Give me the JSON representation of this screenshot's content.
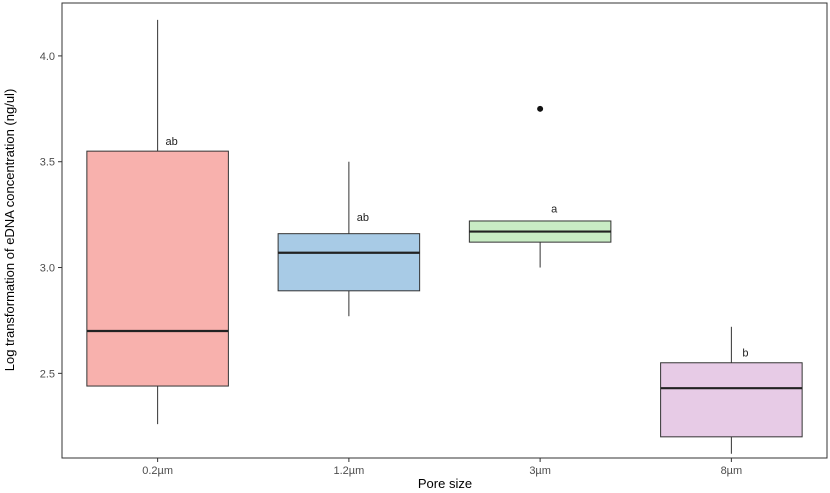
{
  "chart_data": {
    "type": "boxplot",
    "xlabel": "Pore size",
    "ylabel": "Log transformation of eDNA concentration (ng/ul)",
    "ylim": [
      2.1,
      4.25
    ],
    "yticks": [
      "2.5",
      "3.0",
      "3.5",
      "4.0"
    ],
    "grid": false,
    "legend": "none",
    "categories": [
      "0.2µm",
      "1.2µm",
      "3µm",
      "8µm"
    ],
    "boxes": [
      {
        "category": "0.2µm",
        "min": 2.26,
        "q1": 2.44,
        "median": 2.7,
        "q3": 3.55,
        "max": 4.17,
        "outliers": [],
        "label": "ab",
        "color": "#f8b1ad"
      },
      {
        "category": "1.2µm",
        "min": 2.77,
        "q1": 2.89,
        "median": 3.07,
        "q3": 3.16,
        "max": 3.5,
        "outliers": [],
        "label": "ab",
        "color": "#a8cbe6"
      },
      {
        "category": "3µm",
        "min": 3.0,
        "q1": 3.12,
        "median": 3.17,
        "q3": 3.22,
        "max": 3.22,
        "outliers": [
          3.75
        ],
        "label": "a",
        "color": "#c9ecc4"
      },
      {
        "category": "8µm",
        "min": 2.12,
        "q1": 2.2,
        "median": 2.43,
        "q3": 2.55,
        "max": 2.72,
        "outliers": [],
        "label": "b",
        "color": "#e7cbe6"
      }
    ]
  }
}
